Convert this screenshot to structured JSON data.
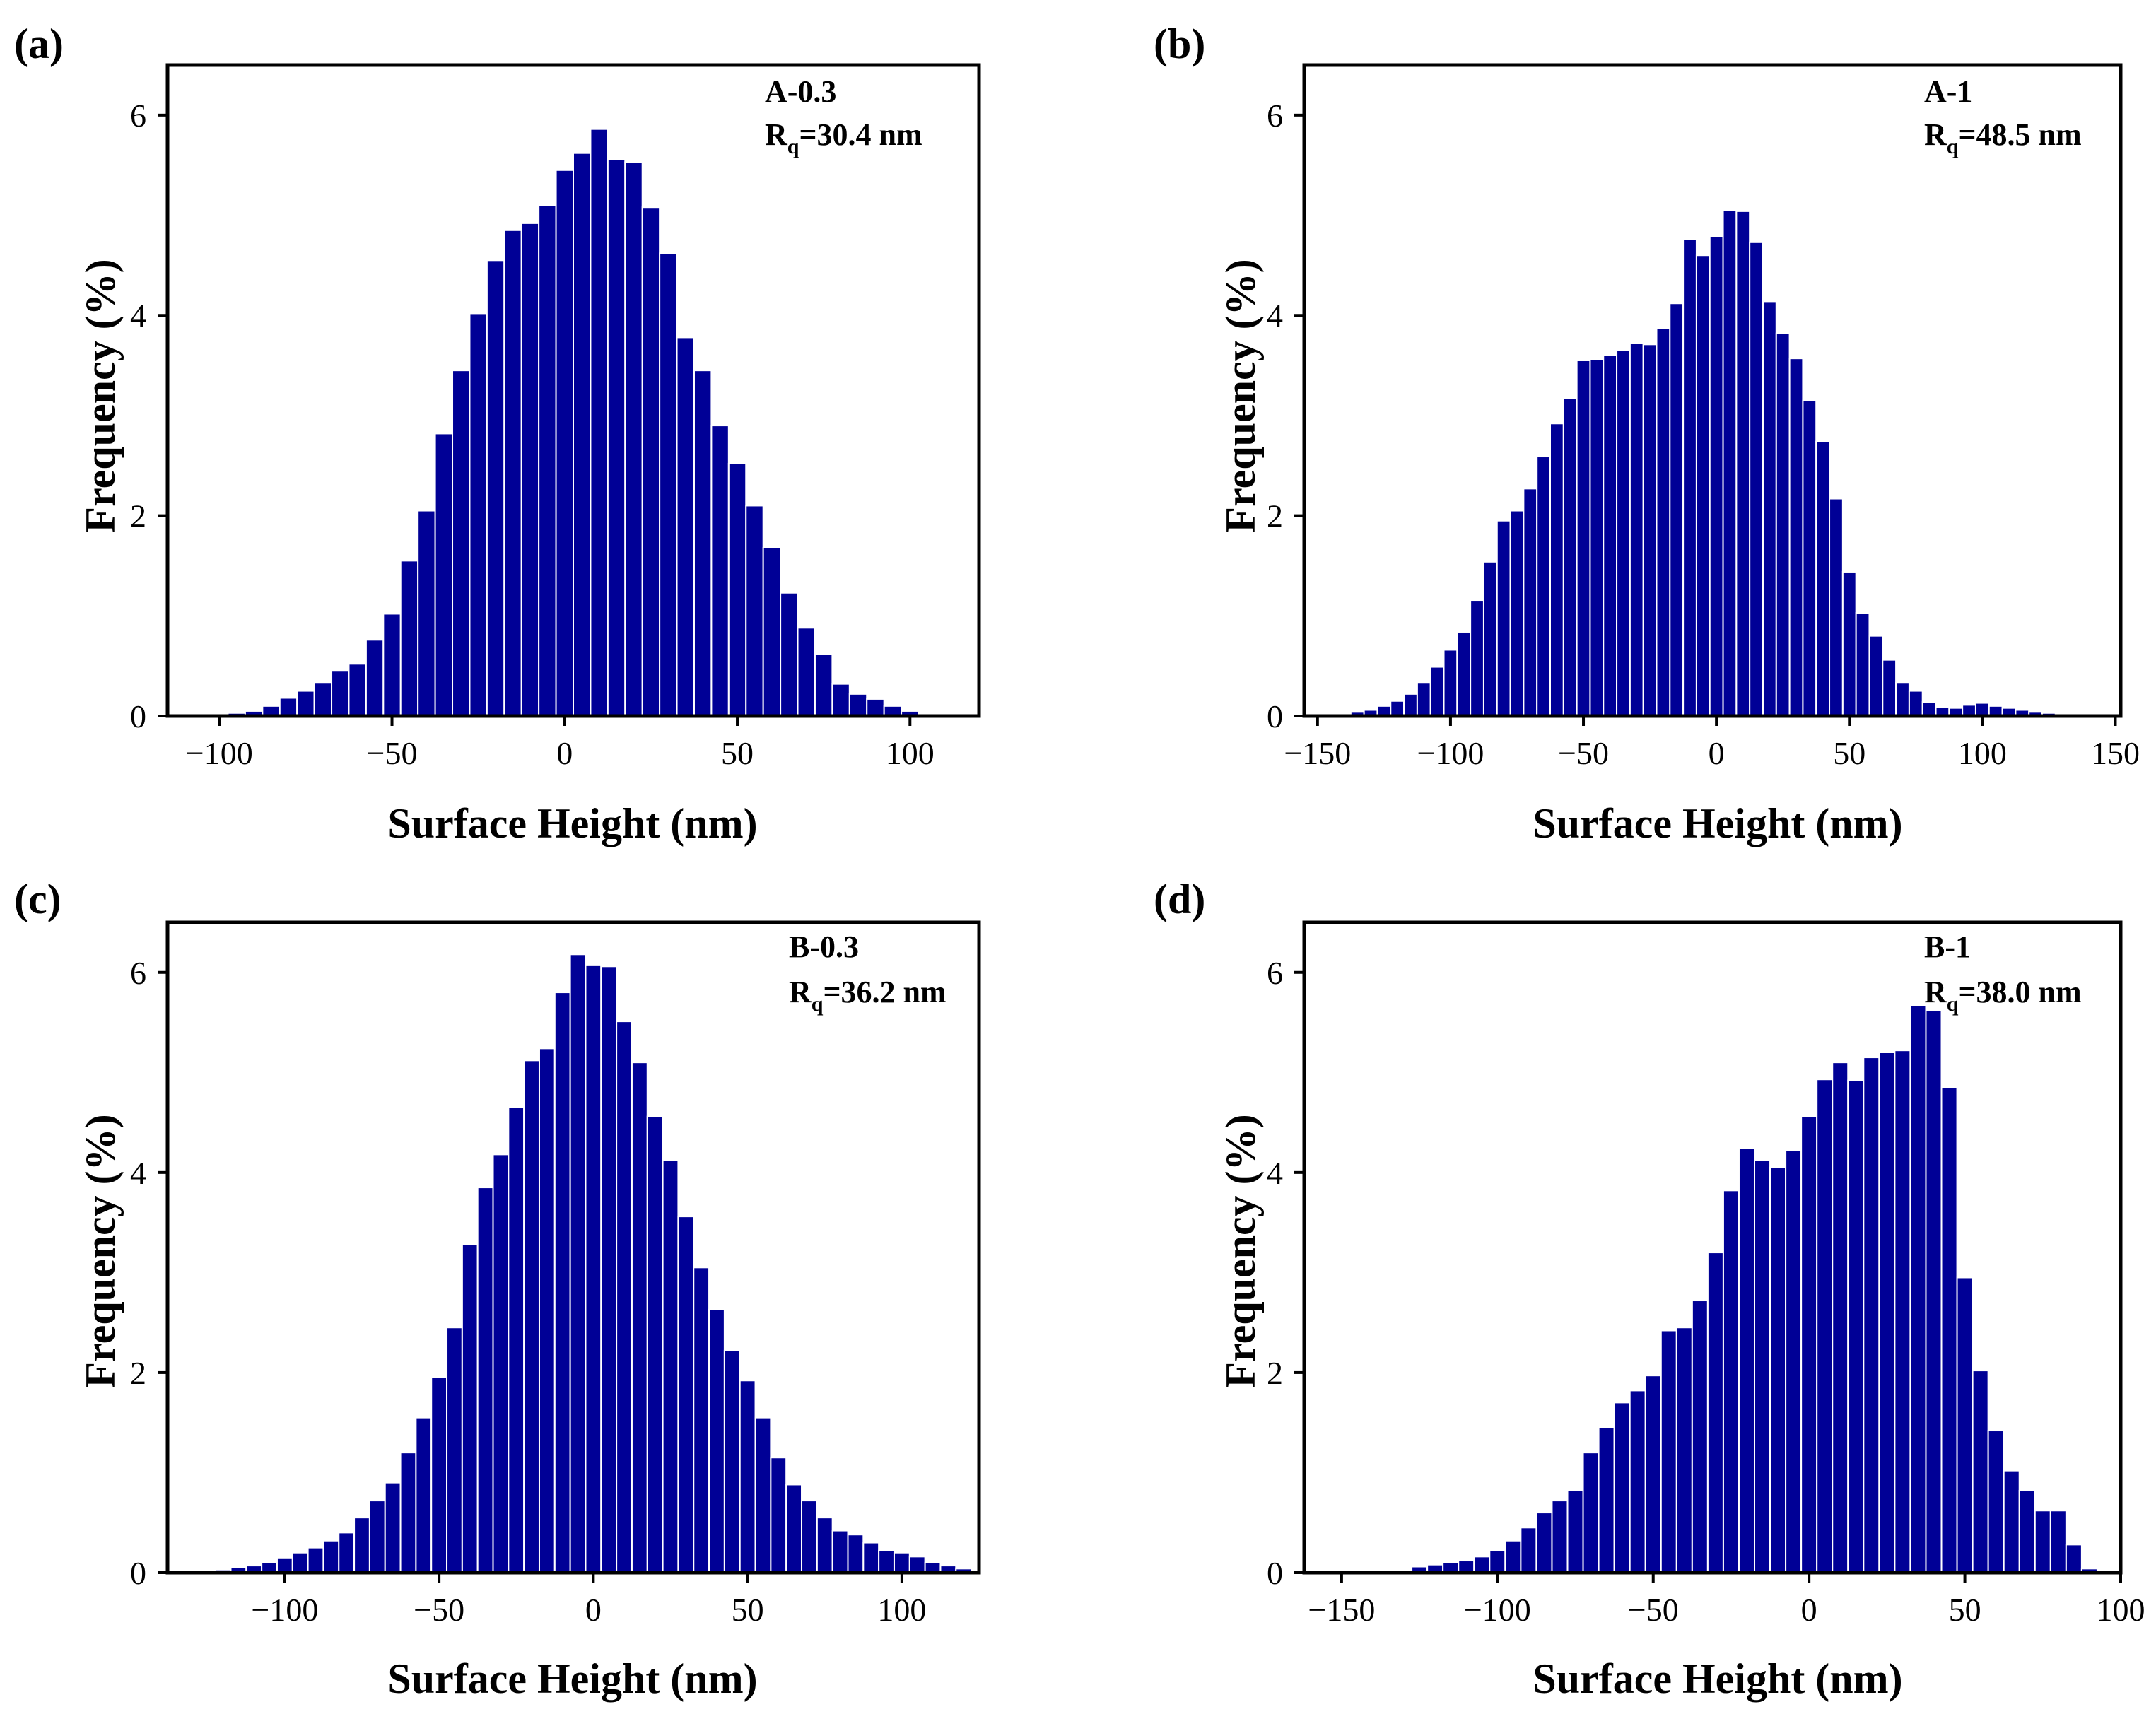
{
  "chart_data": [
    {
      "type": "bar",
      "panel_label": "(a)",
      "sample": "A-0.3",
      "rq_symbol": "R",
      "rq_sub": "q",
      "rq_value": "=30.4 nm",
      "xlabel": "Surface Height (nm)",
      "ylabel": "Frequency (%)",
      "xlim": [
        -115,
        120
      ],
      "ylim": [
        0,
        6.5
      ],
      "xticks": [
        -100,
        -50,
        0,
        50,
        100
      ],
      "xtick_labels": [
        "−100",
        "−50",
        "0",
        "50",
        "100"
      ],
      "yticks": [
        0,
        2,
        4,
        6
      ],
      "ytick_labels": [
        "0",
        "2",
        "4",
        "6"
      ],
      "bin_width": 5,
      "x": [
        -100,
        -95,
        -90,
        -85,
        -80,
        -75,
        -70,
        -65,
        -60,
        -55,
        -50,
        -45,
        -40,
        -35,
        -30,
        -25,
        -20,
        -15,
        -10,
        -5,
        0,
        5,
        10,
        15,
        20,
        25,
        30,
        35,
        40,
        45,
        50,
        55,
        60,
        65,
        70,
        75,
        80,
        85,
        90,
        95,
        100
      ],
      "values": [
        0.02,
        0.03,
        0.05,
        0.1,
        0.18,
        0.25,
        0.33,
        0.45,
        0.52,
        0.76,
        1.02,
        1.55,
        2.05,
        2.82,
        3.45,
        4.02,
        4.55,
        4.85,
        4.92,
        5.1,
        5.45,
        5.62,
        5.86,
        5.56,
        5.53,
        5.08,
        4.62,
        3.78,
        3.45,
        2.9,
        2.52,
        2.1,
        1.68,
        1.23,
        0.88,
        0.62,
        0.32,
        0.22,
        0.17,
        0.1,
        0.05
      ]
    },
    {
      "type": "bar",
      "panel_label": "(b)",
      "sample": "A-1",
      "rq_symbol": "R",
      "rq_sub": "q",
      "rq_value": "=48.5 nm",
      "xlabel": "Surface Height (nm)",
      "ylabel": "Frequency (%)",
      "xlim": [
        -155,
        152
      ],
      "ylim": [
        0,
        6.5
      ],
      "xticks": [
        -150,
        -100,
        -50,
        0,
        50,
        100,
        150
      ],
      "xtick_labels": [
        "−150",
        "−100",
        "−50",
        "0",
        "50",
        "100",
        "150"
      ],
      "yticks": [
        0,
        2,
        4,
        6
      ],
      "ytick_labels": [
        "0",
        "2",
        "4",
        "6"
      ],
      "bin_width": 5,
      "x": [
        -140,
        -135,
        -130,
        -125,
        -120,
        -115,
        -110,
        -105,
        -100,
        -95,
        -90,
        -85,
        -80,
        -75,
        -70,
        -65,
        -60,
        -55,
        -50,
        -45,
        -40,
        -35,
        -30,
        -25,
        -20,
        -15,
        -10,
        -5,
        0,
        5,
        10,
        15,
        20,
        25,
        30,
        35,
        40,
        45,
        50,
        55,
        60,
        65,
        70,
        75,
        80,
        85,
        90,
        95,
        100,
        105,
        110,
        115,
        120,
        125,
        130,
        135,
        140,
        145,
        150
      ],
      "values": [
        0.02,
        0.04,
        0.06,
        0.1,
        0.15,
        0.22,
        0.33,
        0.49,
        0.66,
        0.84,
        1.15,
        1.54,
        1.95,
        2.05,
        2.27,
        2.59,
        2.92,
        3.17,
        3.55,
        3.56,
        3.6,
        3.65,
        3.72,
        3.71,
        3.87,
        4.12,
        4.76,
        4.6,
        4.79,
        5.05,
        5.04,
        4.73,
        4.14,
        3.82,
        3.57,
        3.15,
        2.74,
        2.17,
        1.44,
        1.03,
        0.8,
        0.56,
        0.33,
        0.25,
        0.14,
        0.09,
        0.08,
        0.11,
        0.13,
        0.1,
        0.08,
        0.06,
        0.04,
        0.03,
        0.02,
        0.02,
        0.01,
        0.01,
        0.01
      ]
    },
    {
      "type": "bar",
      "panel_label": "(c)",
      "sample": "B-0.3",
      "rq_symbol": "R",
      "rq_sub": "q",
      "rq_value": "=36.2 nm",
      "xlabel": "Surface Height (nm)",
      "ylabel": "Frequency (%)",
      "xlim": [
        -138,
        125
      ],
      "ylim": [
        0,
        6.5
      ],
      "xticks": [
        -100,
        -50,
        0,
        50,
        100
      ],
      "xtick_labels": [
        "−100",
        "−50",
        "0",
        "50",
        "100"
      ],
      "yticks": [
        0,
        2,
        4,
        6
      ],
      "ytick_labels": [
        "0",
        "2",
        "4",
        "6"
      ],
      "bin_width": 5,
      "x": [
        -125,
        -120,
        -115,
        -110,
        -105,
        -100,
        -95,
        -90,
        -85,
        -80,
        -75,
        -70,
        -65,
        -60,
        -55,
        -50,
        -45,
        -40,
        -35,
        -30,
        -25,
        -20,
        -15,
        -10,
        -5,
        0,
        5,
        10,
        15,
        20,
        25,
        30,
        35,
        40,
        45,
        50,
        55,
        60,
        65,
        70,
        75,
        80,
        85,
        90,
        95,
        100,
        105,
        110,
        115,
        120
      ],
      "values": [
        0.01,
        0.03,
        0.05,
        0.07,
        0.1,
        0.15,
        0.2,
        0.25,
        0.32,
        0.4,
        0.55,
        0.72,
        0.9,
        1.2,
        1.55,
        1.95,
        2.45,
        3.28,
        3.85,
        4.18,
        4.65,
        5.12,
        5.24,
        5.8,
        6.18,
        6.07,
        6.06,
        5.51,
        5.1,
        4.56,
        4.12,
        3.56,
        3.05,
        2.63,
        2.22,
        1.92,
        1.55,
        1.15,
        0.88,
        0.72,
        0.55,
        0.42,
        0.38,
        0.3,
        0.22,
        0.2,
        0.16,
        0.1,
        0.07,
        0.04
      ]
    },
    {
      "type": "bar",
      "panel_label": "(d)",
      "sample": "B-1",
      "rq_symbol": "R",
      "rq_sub": "q",
      "rq_value": "=38.0 nm",
      "xlabel": "Surface Height (nm)",
      "ylabel": "Frequency (%)",
      "xlim": [
        -162,
        100
      ],
      "ylim": [
        0,
        6.5
      ],
      "xticks": [
        -150,
        -100,
        -50,
        0,
        50,
        100
      ],
      "xtick_labels": [
        "−150",
        "−100",
        "−50",
        "0",
        "50",
        "100"
      ],
      "yticks": [
        0,
        2,
        4,
        6
      ],
      "ytick_labels": [
        "0",
        "2",
        "4",
        "6"
      ],
      "bin_width": 5,
      "x": [
        -135,
        -130,
        -125,
        -120,
        -115,
        -110,
        -105,
        -100,
        -95,
        -90,
        -85,
        -80,
        -75,
        -70,
        -65,
        -60,
        -55,
        -50,
        -45,
        -40,
        -35,
        -30,
        -25,
        -20,
        -15,
        -10,
        -5,
        0,
        5,
        10,
        15,
        20,
        25,
        30,
        35,
        40,
        45,
        50,
        55,
        60,
        65,
        70,
        75,
        80,
        85,
        90
      ],
      "values": [
        0.01,
        0.02,
        0.06,
        0.08,
        0.1,
        0.12,
        0.16,
        0.22,
        0.32,
        0.45,
        0.6,
        0.72,
        0.82,
        1.2,
        1.45,
        1.7,
        1.82,
        1.97,
        2.42,
        2.45,
        2.72,
        3.2,
        3.82,
        4.24,
        4.12,
        4.05,
        4.22,
        4.56,
        4.93,
        5.1,
        4.92,
        5.15,
        5.2,
        5.22,
        5.67,
        5.62,
        4.85,
        2.95,
        2.02,
        1.42,
        1.02,
        0.82,
        0.62,
        0.62,
        0.28,
        0.04
      ]
    }
  ]
}
